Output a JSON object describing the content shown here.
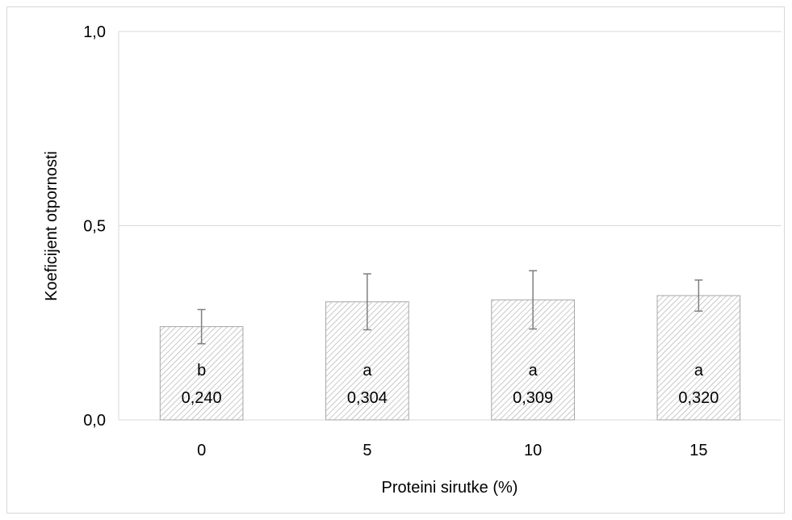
{
  "chart_data": {
    "type": "bar",
    "categories": [
      "0",
      "5",
      "10",
      "15"
    ],
    "values": [
      0.24,
      0.304,
      0.309,
      0.32
    ],
    "errors": [
      0.044,
      0.072,
      0.075,
      0.04
    ],
    "letters": [
      "b",
      "a",
      "a",
      "a"
    ],
    "value_labels": [
      "0,240",
      "0,304",
      "0,309",
      "0,320"
    ],
    "xlabel": "Proteini sirutke (%)",
    "ylabel": "Koeficijent otpornosti",
    "ylim": [
      0,
      1
    ],
    "yticks": [
      0,
      0.5,
      1
    ],
    "ytick_labels": [
      "0,0",
      "0,5",
      "1,0"
    ],
    "grid": true,
    "bar_fill": "hatched"
  },
  "colors": {
    "gridline": "#d9d9d9",
    "bar_border": "#a6a6a6",
    "hatch": "#a6a6a6",
    "error_bar": "#7f7f7f"
  }
}
